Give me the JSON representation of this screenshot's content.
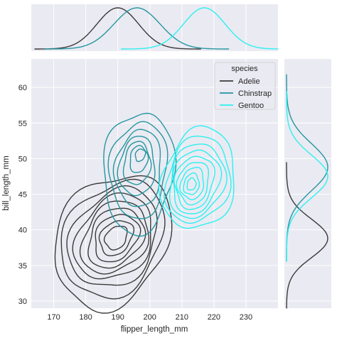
{
  "chart_data": {
    "type": "kde-jointplot",
    "xlabel": "flipper_length_mm",
    "ylabel": "bill_length_mm",
    "xlim": [
      163,
      240
    ],
    "ylim": [
      29,
      64
    ],
    "xticks": [
      170,
      180,
      190,
      200,
      210,
      220,
      230
    ],
    "yticks": [
      30,
      35,
      40,
      45,
      50,
      55,
      60
    ],
    "grid": true,
    "background": "#eaeaf2",
    "legend": {
      "title": "species",
      "placement": "top-right"
    },
    "series": [
      {
        "name": "Adelie",
        "color": "#3b3b3b",
        "levels": [
          {
            "c": [
              189.5,
              38.9
            ],
            "rx": 4,
            "ry": 1.5
          },
          {
            "c": [
              189.5,
              38.9
            ],
            "rx": 6,
            "ry": 2.2
          },
          {
            "c": [
              189.5,
              38.9
            ],
            "rx": 8,
            "ry": 3.0
          },
          {
            "c": [
              189.3,
              38.9
            ],
            "rx": 10,
            "ry": 3.8
          },
          {
            "c": [
              189.1,
              38.9
            ],
            "rx": 12,
            "ry": 4.6
          },
          {
            "c": [
              188.9,
              38.9
            ],
            "rx": 14,
            "ry": 5.4
          },
          {
            "c": [
              188.7,
              38.8
            ],
            "rx": 16,
            "ry": 6.3
          },
          {
            "c": [
              188.5,
              38.7
            ],
            "rx": 18.5,
            "ry": 7.4
          },
          {
            "c": [
              188.3,
              38.5
            ],
            "rx": 21,
            "ry": 8.6
          }
        ],
        "marginal_x": {
          "mean": 190,
          "sd": 6.5
        },
        "marginal_y": {
          "mean": 38.8,
          "sd": 2.7
        }
      },
      {
        "name": "Chinstrap",
        "color": "#2596a0",
        "levels": [
          {
            "c": [
              197,
              50.5
            ],
            "rx": 1.8,
            "ry": 0.8
          },
          {
            "c": [
              196.5,
              49.9
            ],
            "rx": 3.2,
            "ry": 1.8
          },
          {
            "c": [
              196,
              49.3
            ],
            "rx": 4.8,
            "ry": 2.9
          },
          {
            "c": [
              196,
              48.9
            ],
            "rx": 6.5,
            "ry": 4.0
          },
          {
            "c": [
              196.5,
              48.6
            ],
            "rx": 8.3,
            "ry": 5.2
          },
          {
            "c": [
              196.5,
              48.4
            ],
            "rx": 10.3,
            "ry": 6.5
          },
          {
            "c": [
              196.5,
              48.1
            ],
            "rx": 12.7,
            "ry": 8.2
          }
        ],
        "marginal_x": {
          "mean": 196,
          "sd": 7.2
        },
        "marginal_y": {
          "mean": 48.8,
          "sd": 3.3
        }
      },
      {
        "name": "Gentoo",
        "color": "#2ef0f0",
        "levels": [
          {
            "c": [
              213,
              46.4
            ],
            "rx": 1.6,
            "ry": 0.8
          },
          {
            "c": [
              213,
              46.4
            ],
            "rx": 2.8,
            "ry": 1.4
          },
          {
            "c": [
              213.3,
              46.5
            ],
            "rx": 4.2,
            "ry": 2.1
          },
          {
            "c": [
              213.6,
              46.6
            ],
            "rx": 5.6,
            "ry": 2.8
          },
          {
            "c": [
              213.9,
              46.7
            ],
            "rx": 7.0,
            "ry": 3.5
          },
          {
            "c": [
              214.3,
              46.8
            ],
            "rx": 8.5,
            "ry": 4.2
          },
          {
            "c": [
              214.6,
              46.9
            ],
            "rx": 10.0,
            "ry": 4.9
          },
          {
            "c": [
              214.9,
              47.0
            ],
            "rx": 11.6,
            "ry": 5.7
          },
          {
            "c": [
              215.2,
              47.1
            ],
            "rx": 13.3,
            "ry": 6.7
          }
        ],
        "marginal_x": {
          "mean": 217,
          "sd": 6.5
        },
        "marginal_y": {
          "mean": 47.5,
          "sd": 3.0
        }
      }
    ]
  }
}
